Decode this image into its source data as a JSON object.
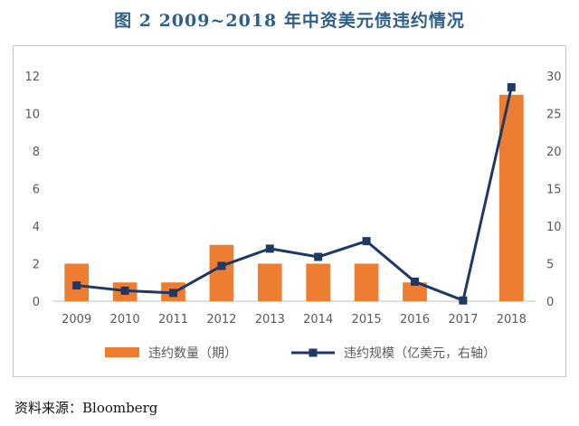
{
  "title": "图 2 2009~2018 年中资美元债违约情况",
  "source": "资料来源：Bloomberg",
  "chart_data": {
    "type": "bar",
    "categories": [
      "2009",
      "2010",
      "2011",
      "2012",
      "2013",
      "2014",
      "2015",
      "2016",
      "2017",
      "2018"
    ],
    "series": [
      {
        "name": "违约数量（期）",
        "type": "bar",
        "axis": "left",
        "color": "#ed7d31",
        "values": [
          2,
          1,
          1,
          3,
          2,
          2,
          2,
          1,
          0,
          11
        ]
      },
      {
        "name": "违约规模（亿美元，右轴）",
        "type": "line",
        "axis": "right",
        "color": "#1f3864",
        "values": [
          2.1,
          1.4,
          1.1,
          4.7,
          7.0,
          5.9,
          8.0,
          2.6,
          0.1,
          28.5
        ]
      }
    ],
    "y_left": {
      "min": 0,
      "max": 12,
      "ticks": [
        "0",
        "2",
        "4",
        "6",
        "8",
        "10",
        "12"
      ]
    },
    "y_right": {
      "min": 0,
      "max": 30,
      "ticks": [
        "0",
        "5",
        "10",
        "15",
        "20",
        "25",
        "30"
      ]
    },
    "grid": false,
    "legend": "bottom"
  }
}
